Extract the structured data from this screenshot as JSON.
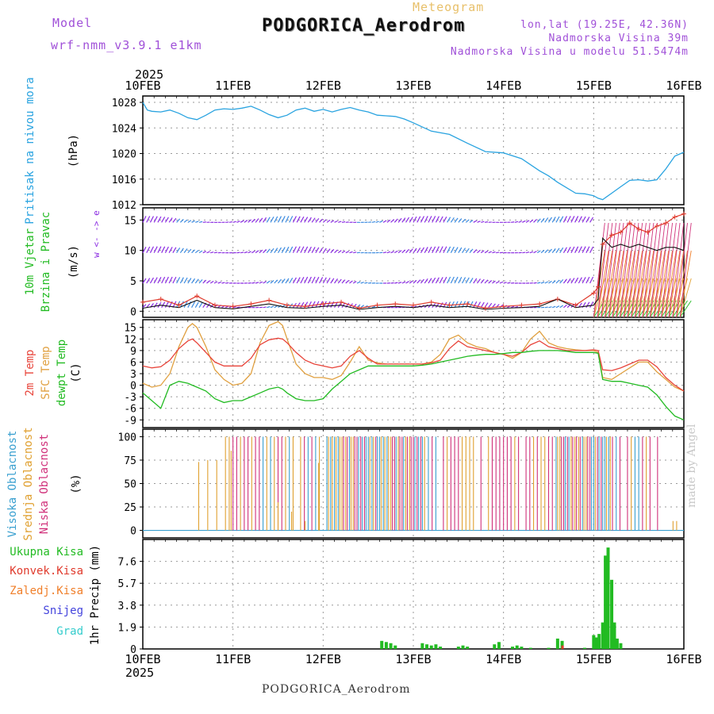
{
  "header": {
    "model_label": "Model",
    "model_name": "wrf-nmm_v3.9.1 e1km",
    "meteogram": "Meteogram",
    "station": "PODGORICA_Aerodrom",
    "lonlat": "lon,lat (19.25E, 42.36N)",
    "altitude": "Nadmorska Visina 39m",
    "model_altitude": "Nadmorska Visina u modelu 51.5474m"
  },
  "footer": {
    "station": "PODGORICA_Aerodrom",
    "credit": "made by Angel"
  },
  "colors": {
    "pressure": "#29a3e0",
    "wind_speed": "#e03a2c",
    "wind_gust": "#111111",
    "t2m": "#e8443a",
    "tsfc": "#e0a040",
    "dewpt": "#22bb22",
    "high_cloud": "#3aa0d0",
    "mid_cloud": "#e0a030",
    "low_cloud": "#d0307a",
    "precip_total": "#22bb22",
    "precip_conv": "#e03a2c",
    "frozen": "#f07f2a",
    "snow": "#4444dd",
    "graupel": "#33cccc",
    "barb": "#8a2be2"
  },
  "x_axis": {
    "year": "2025",
    "ticks": [
      "10FEB",
      "11FEB",
      "12FEB",
      "13FEB",
      "14FEB",
      "15FEB",
      "16FEB"
    ]
  },
  "chart_data": [
    {
      "type": "line",
      "id": "pressure",
      "ylabel_colored": "Pritisak na nivou mora",
      "ylabel_unit": "(hPa)",
      "ylim": [
        1012,
        1029
      ],
      "yticks": [
        "1012",
        "1016",
        "1020",
        "1024",
        "1028"
      ],
      "x_days": [
        0,
        0.05,
        0.1,
        0.2,
        0.3,
        0.4,
        0.5,
        0.6,
        0.7,
        0.8,
        0.9,
        1.0,
        1.1,
        1.2,
        1.3,
        1.4,
        1.5,
        1.6,
        1.7,
        1.8,
        1.9,
        2.0,
        2.1,
        2.2,
        2.3,
        2.4,
        2.5,
        2.6,
        2.7,
        2.8,
        2.9,
        3.0,
        3.2,
        3.4,
        3.6,
        3.8,
        4.0,
        4.2,
        4.4,
        4.5,
        4.6,
        4.8,
        4.9,
        5.0,
        5.05,
        5.1,
        5.2,
        5.3,
        5.4,
        5.5,
        5.6,
        5.7,
        5.8,
        5.9,
        6.0
      ],
      "series": [
        {
          "values": [
            1028,
            1026.8,
            1026.6,
            1026.5,
            1026.8,
            1026.3,
            1025.6,
            1025.3,
            1026,
            1026.8,
            1027,
            1026.9,
            1027.1,
            1027.4,
            1026.8,
            1026.1,
            1025.6,
            1026,
            1026.8,
            1027.1,
            1026.6,
            1026.9,
            1026.5,
            1026.9,
            1027.2,
            1026.8,
            1026.5,
            1026,
            1025.9,
            1025.8,
            1025.4,
            1024.8,
            1023.5,
            1023,
            1021.6,
            1020.3,
            1020.1,
            1019.2,
            1017.3,
            1016.5,
            1015.5,
            1013.8,
            1013.7,
            1013.4,
            1013.0,
            1012.8,
            1013.8,
            1014.8,
            1015.8,
            1015.9,
            1015.7,
            1015.9,
            1017.6,
            1019.6,
            1020.2
          ]
        }
      ]
    },
    {
      "type": "line",
      "id": "wind",
      "ylabel_colored_1": "10m Vjetar",
      "ylabel_colored_2": "Brzina i Pravac",
      "ylabel_unit": "(m/s)",
      "barb_key": "w <- -> e",
      "ylim": [
        -1,
        17
      ],
      "yticks": [
        "0",
        "5",
        "10",
        "15"
      ],
      "x_days": [
        0,
        0.2,
        0.4,
        0.6,
        0.8,
        1.0,
        1.2,
        1.4,
        1.6,
        1.8,
        2.0,
        2.2,
        2.4,
        2.6,
        2.8,
        3.0,
        3.2,
        3.4,
        3.6,
        3.8,
        4.0,
        4.2,
        4.4,
        4.6,
        4.8,
        5.0,
        5.05,
        5.1,
        5.2,
        5.3,
        5.4,
        5.5,
        5.6,
        5.7,
        5.8,
        5.9,
        6.0
      ],
      "series": [
        {
          "values": [
            1.5,
            2.0,
            1.0,
            2.5,
            1.0,
            0.8,
            1.2,
            1.8,
            1.0,
            0.8,
            1.2,
            1.5,
            0.5,
            1.0,
            1.2,
            1.0,
            1.5,
            1.0,
            1.2,
            0.5,
            0.8,
            1.0,
            1.2,
            2.0,
            1.0,
            3.0,
            4.0,
            11.0,
            12.5,
            13.0,
            14.5,
            13.5,
            13.0,
            14.0,
            14.5,
            15.5,
            16.0
          ]
        },
        {
          "values": [
            0.5,
            1.0,
            0.6,
            1.8,
            0.6,
            0.4,
            0.8,
            1.2,
            0.6,
            0.5,
            0.8,
            1.0,
            0.3,
            0.6,
            0.8,
            0.6,
            1.0,
            0.6,
            0.8,
            0.3,
            0.5,
            0.6,
            0.8,
            2.0,
            0.6,
            1.0,
            2.0,
            12.0,
            10.5,
            11.0,
            10.5,
            11.0,
            10.5,
            10.0,
            10.5,
            10.5,
            10.0
          ]
        }
      ]
    },
    {
      "type": "line",
      "id": "temperature",
      "ylabel_colored_1": "2m Temp",
      "ylabel_colored_2": "SFC Temp",
      "ylabel_colored_3": "dewpt Temp",
      "ylabel_unit": "(C)",
      "ylim": [
        -11,
        17
      ],
      "yticks": [
        "-9",
        "-6",
        "-3",
        "0",
        "3",
        "6",
        "9",
        "12",
        "15"
      ],
      "x_days": [
        0,
        0.1,
        0.2,
        0.3,
        0.4,
        0.5,
        0.55,
        0.6,
        0.7,
        0.8,
        0.9,
        1.0,
        1.1,
        1.2,
        1.3,
        1.4,
        1.5,
        1.55,
        1.6,
        1.7,
        1.8,
        1.9,
        2.0,
        2.1,
        2.2,
        2.3,
        2.4,
        2.5,
        2.6,
        2.7,
        2.8,
        2.9,
        3.0,
        3.1,
        3.2,
        3.3,
        3.4,
        3.5,
        3.6,
        3.7,
        3.8,
        3.9,
        4.0,
        4.1,
        4.2,
        4.3,
        4.4,
        4.5,
        4.6,
        4.7,
        4.8,
        4.9,
        5.0,
        5.05,
        5.1,
        5.2,
        5.3,
        5.4,
        5.5,
        5.6,
        5.7,
        5.8,
        5.9,
        6.0
      ],
      "series": [
        {
          "values": [
            5,
            4.5,
            4.8,
            6.5,
            9.5,
            11.5,
            12,
            11,
            8.5,
            6,
            5,
            5,
            5,
            7,
            10.5,
            11.8,
            12.2,
            12,
            11,
            8.5,
            6.5,
            5.5,
            5,
            4.5,
            5,
            7.5,
            9,
            7,
            5.5,
            5.5,
            5.5,
            5.5,
            5.5,
            5.5,
            5.8,
            6.5,
            9.5,
            11.5,
            10,
            9.5,
            9,
            8.5,
            8,
            7.5,
            8.5,
            10.5,
            11.5,
            10,
            9.5,
            9,
            9,
            9,
            9.2,
            9,
            4,
            3.8,
            4.5,
            5.5,
            6.5,
            6.5,
            4.8,
            2,
            0,
            -1.5
          ]
        },
        {
          "values": [
            0.5,
            -0.5,
            0,
            3,
            10,
            15,
            16,
            15,
            10,
            4,
            1.5,
            0,
            0.5,
            3,
            11,
            15.5,
            16.5,
            15.5,
            12,
            5.5,
            3,
            2,
            2,
            1.5,
            2.5,
            6,
            10,
            6.5,
            5.8,
            5.5,
            5.5,
            5.5,
            5.5,
            5.5,
            6,
            8,
            12,
            13,
            11,
            10,
            9.5,
            8.5,
            8,
            7,
            8.5,
            12,
            14,
            11,
            10,
            9.5,
            9.2,
            9,
            9,
            8.5,
            2,
            1.5,
            3,
            4.5,
            6,
            6,
            3.5,
            1.5,
            -0.5,
            -1.5
          ]
        },
        {
          "values": [
            -2,
            -4,
            -6,
            0,
            1,
            0.5,
            0,
            -0.5,
            -1.5,
            -3.5,
            -4.5,
            -4,
            -4,
            -3,
            -2,
            -1,
            -0.5,
            -1,
            -2,
            -3.5,
            -4,
            -4,
            -3.5,
            -1,
            1,
            3,
            4,
            5,
            5,
            5,
            5,
            5,
            5,
            5.2,
            5.5,
            6,
            6.5,
            7,
            7.5,
            7.8,
            8,
            8,
            8.2,
            8.5,
            8.5,
            8.8,
            9,
            9,
            9,
            8.8,
            8.5,
            8.5,
            8.5,
            8.3,
            1.5,
            1,
            1,
            0.5,
            0,
            -0.5,
            -2.5,
            -5.5,
            -8,
            -9
          ]
        }
      ]
    },
    {
      "type": "bar",
      "id": "cloud",
      "ylabel_colored_1": "Visoka Oblacnost",
      "ylabel_colored_2": "Srednja Oblacnost",
      "ylabel_colored_3": "Niska Oblacnost",
      "ylabel_unit": "(%)",
      "ylim": [
        -8,
        108
      ],
      "yticks": [
        "0",
        "25",
        "50",
        "75",
        "100"
      ],
      "series": [
        {
          "name": "high",
          "values_per_hour": "mostly 100 from 11FEB to 15.8FEB with gaps"
        },
        {
          "name": "mid",
          "values_per_hour": "100 pulses 10.9–15.8FEB"
        },
        {
          "name": "low",
          "values_per_hour": "sparse 100 pulses"
        }
      ]
    },
    {
      "type": "bar",
      "id": "precip",
      "ylabel_colored": [
        "Ukupna Kisa",
        "Konvek.Kisa",
        "Zaledj.Kisa",
        "Snijeg",
        "Grad"
      ],
      "ylabel_unit": "1hr Precip (mm)",
      "ylim": [
        0,
        9.5
      ],
      "yticks": [
        "0",
        "1.9",
        "3.8",
        "5.7",
        "7.6"
      ],
      "x_days": [
        2.65,
        2.7,
        2.75,
        2.8,
        3.1,
        3.15,
        3.2,
        3.25,
        3.3,
        3.5,
        3.55,
        3.6,
        3.9,
        3.95,
        4.1,
        4.15,
        4.2,
        4.3,
        4.5,
        4.6,
        4.65,
        4.9,
        5.0,
        5.03,
        5.06,
        5.1,
        5.13,
        5.16,
        5.2,
        5.23,
        5.26,
        5.3
      ],
      "series": [
        {
          "name": "total",
          "values": [
            0.7,
            0.6,
            0.5,
            0.3,
            0.5,
            0.4,
            0.3,
            0.4,
            0.2,
            0.2,
            0.3,
            0.2,
            0.4,
            0.6,
            0.2,
            0.3,
            0.2,
            0.1,
            0.1,
            0.9,
            0.7,
            0.1,
            1.2,
            1.0,
            1.3,
            2.3,
            8.1,
            8.8,
            6.0,
            2.3,
            0.9,
            0.5
          ]
        },
        {
          "name": "convective",
          "values": [
            0,
            0,
            0,
            0,
            0,
            0,
            0,
            0,
            0,
            0,
            0,
            0,
            0,
            0,
            0,
            0,
            0,
            0,
            0,
            0,
            0.3,
            0,
            0,
            0,
            0,
            0,
            0,
            0,
            0,
            0,
            0,
            0
          ]
        }
      ]
    }
  ]
}
